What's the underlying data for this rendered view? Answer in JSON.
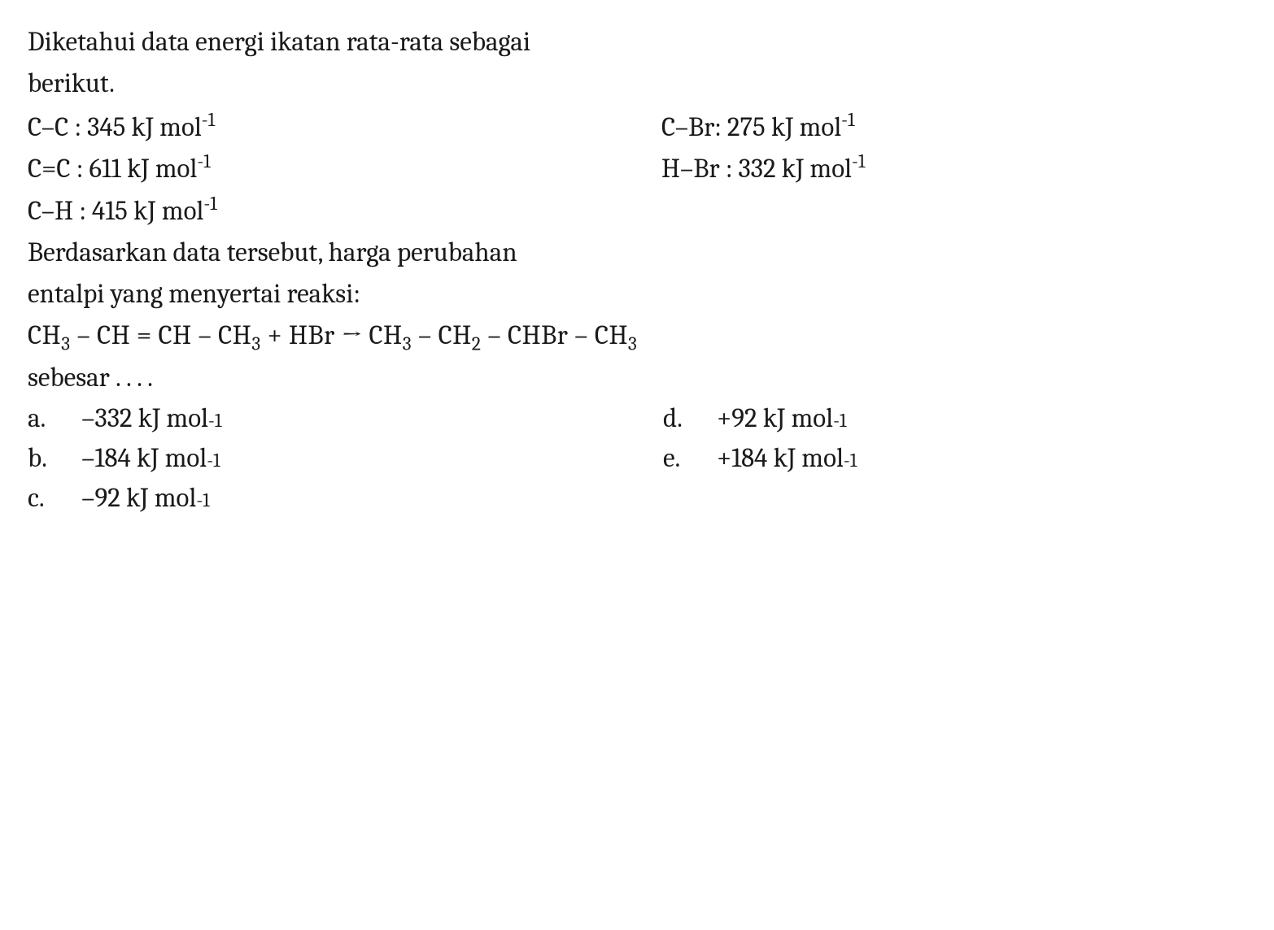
{
  "intro_line1": "Diketahui data energi ikatan rata-rata sebagai",
  "intro_line2": "berikut.",
  "bonds": {
    "cc_single_label": "C–C : 345 kJ mol",
    "cc_double_label": "C=C : 611 kJ mol",
    "ch_label": "C–H : 415 kJ mol",
    "cbr_label": "C–Br: 275 kJ mol",
    "hbr_label": "H–Br : 332 kJ mol",
    "exp": "-1"
  },
  "q_line1": "Berdasarkan data tersebut, harga perubahan",
  "q_line2": "entalpi yang menyertai reaksi:",
  "reaction": {
    "p1": "CH",
    "s3": "3",
    "dash": " – ",
    "p_ch": "CH",
    "eq": " = ",
    "plus": " + ",
    "hbr": "HBr",
    "arrow": " → ",
    "s2": "2",
    "chbr": "CHBr"
  },
  "tail": "sebesar . . . .",
  "choices": [
    {
      "letter": "a.",
      "text": "–332 kJ mol",
      "exp": "-1"
    },
    {
      "letter": "b.",
      "text": "–184 kJ mol",
      "exp": "-1"
    },
    {
      "letter": "c.",
      "text": "–92 kJ mol",
      "exp": "-1"
    },
    {
      "letter": "d.",
      "text": "+92 kJ mol",
      "exp": "-1"
    },
    {
      "letter": "e.",
      "text": "+184 kJ mol",
      "exp": "-1"
    }
  ],
  "colors": {
    "text": "#1a1a1a",
    "background": "#ffffff"
  },
  "typography": {
    "base_fontsize_pt": 25,
    "font_family": "Cambria / Georgia / serif",
    "line_height": 1.48
  }
}
